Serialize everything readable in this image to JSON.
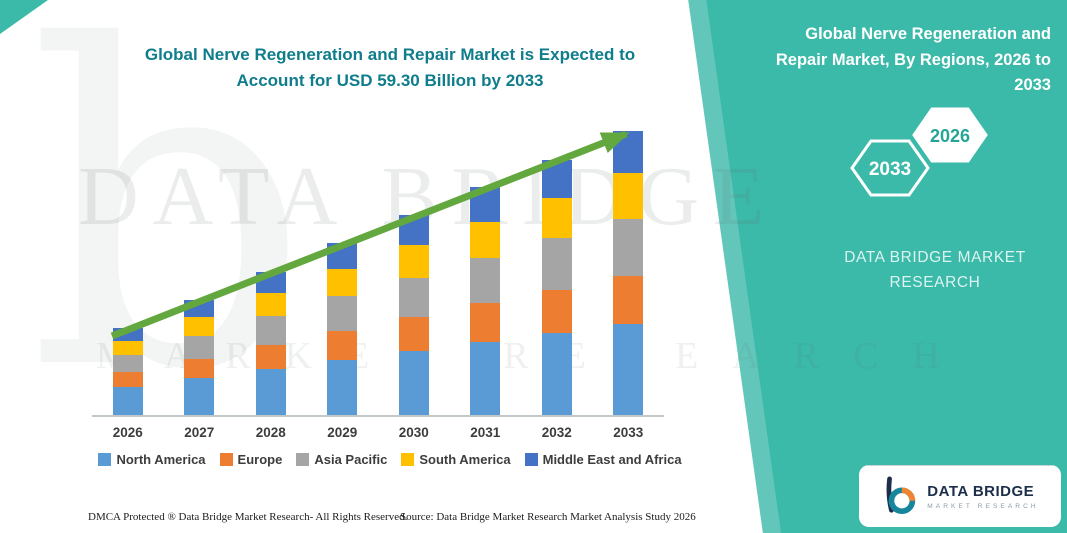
{
  "page": {
    "accent_teal": "#3bb9a9",
    "arrow_green": "#63a83e",
    "title_teal": "#0f7d8c"
  },
  "title": {
    "line1": "Global Nerve Regeneration and Repair Market is Expected to",
    "line2": "Account for USD 59.30 Billion by 2033"
  },
  "side_panel": {
    "title": "Global Nerve Regeneration and Repair Market, By Regions, 2026 to 2033",
    "hex_back_label": "2033",
    "hex_front_label": "2026",
    "brand_line1": "DATA BRIDGE MARKET",
    "brand_line2": "RESEARCH"
  },
  "watermark": {
    "big_letter": "b",
    "line1": "DATA BRIDGE",
    "line2": "MARKET RESEARCH"
  },
  "footer": {
    "dmca": "DMCA Protected ® Data Bridge Market Research-  All Rights Reserved.",
    "source": "Source: Data Bridge Market Research  Market Analysis Study 2026"
  },
  "logo": {
    "title": "DATA BRIDGE",
    "subtitle": "MARKET RESEARCH"
  },
  "chart_data": {
    "type": "bar",
    "stacked": true,
    "title": "Global Nerve Regeneration and Repair Market is Expected to Account for USD 59.30 Billion by 2033",
    "unit": "USD Billion",
    "categories": [
      "2026",
      "2027",
      "2028",
      "2029",
      "2030",
      "2031",
      "2032",
      "2033"
    ],
    "series": [
      {
        "name": "North America",
        "color": "#5B9BD5",
        "values": [
          5.8,
          7.7,
          9.6,
          11.5,
          13.3,
          15.2,
          17.1,
          19.0
        ]
      },
      {
        "name": "Europe",
        "color": "#ED7D31",
        "values": [
          3.1,
          4.1,
          5.1,
          6.1,
          7.1,
          8.1,
          9.1,
          10.1
        ]
      },
      {
        "name": "Asia Pacific",
        "color": "#A5A5A5",
        "values": [
          3.6,
          4.8,
          6.0,
          7.2,
          8.3,
          9.5,
          10.7,
          11.9
        ]
      },
      {
        "name": "South America",
        "color": "#FFC000",
        "values": [
          2.9,
          3.8,
          4.8,
          5.7,
          6.7,
          7.6,
          8.5,
          9.5
        ]
      },
      {
        "name": "Middle East and Africa",
        "color": "#4472C4",
        "values": [
          2.7,
          3.6,
          4.4,
          5.4,
          6.3,
          7.2,
          7.9,
          8.8
        ]
      }
    ],
    "totals": [
      18.1,
      24.0,
      29.9,
      35.9,
      41.7,
      47.6,
      53.3,
      59.3
    ],
    "ylim": [
      0,
      62
    ],
    "xlabel": "",
    "ylabel": "",
    "grid": false,
    "y_axis_visible": false,
    "legend_position": "bottom",
    "annotations": [
      "upward green trend arrow across bar tops"
    ]
  }
}
